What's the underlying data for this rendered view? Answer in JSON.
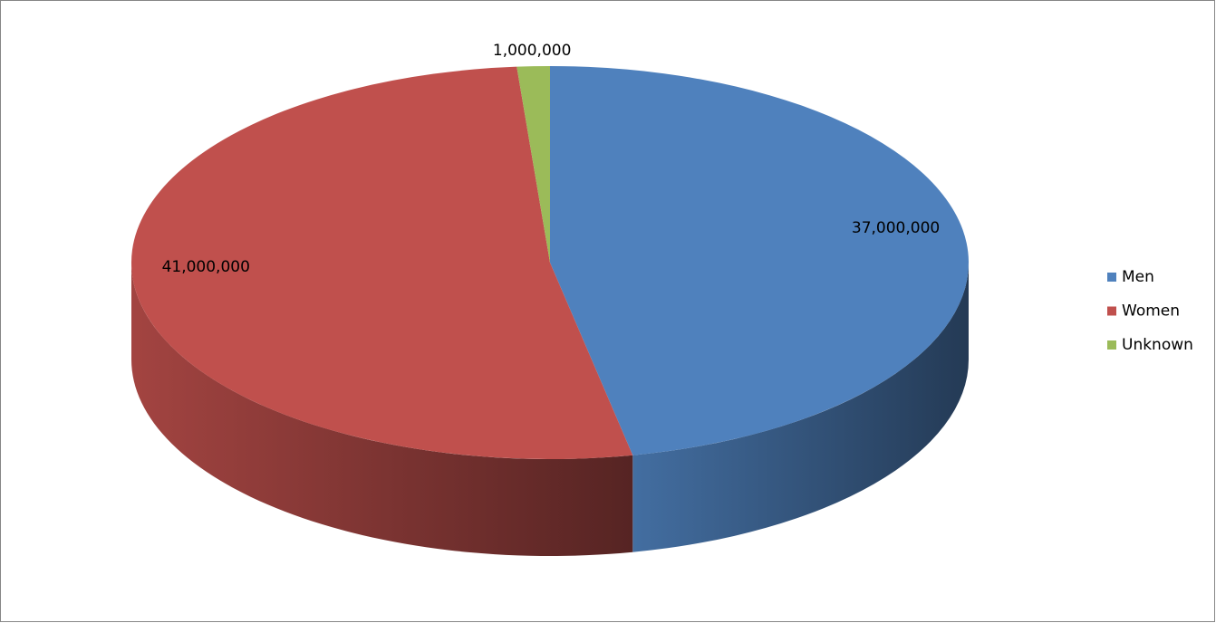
{
  "chart_data": {
    "type": "pie",
    "categories": [
      "Men",
      "Women",
      "Unknown"
    ],
    "values": [
      37000000,
      41000000,
      1000000
    ],
    "value_labels": [
      "37,000,000",
      "41,000,000",
      "1,000,000"
    ],
    "colors": [
      "#4f81bd",
      "#c0504d",
      "#9bbb59"
    ],
    "legend": "right"
  }
}
